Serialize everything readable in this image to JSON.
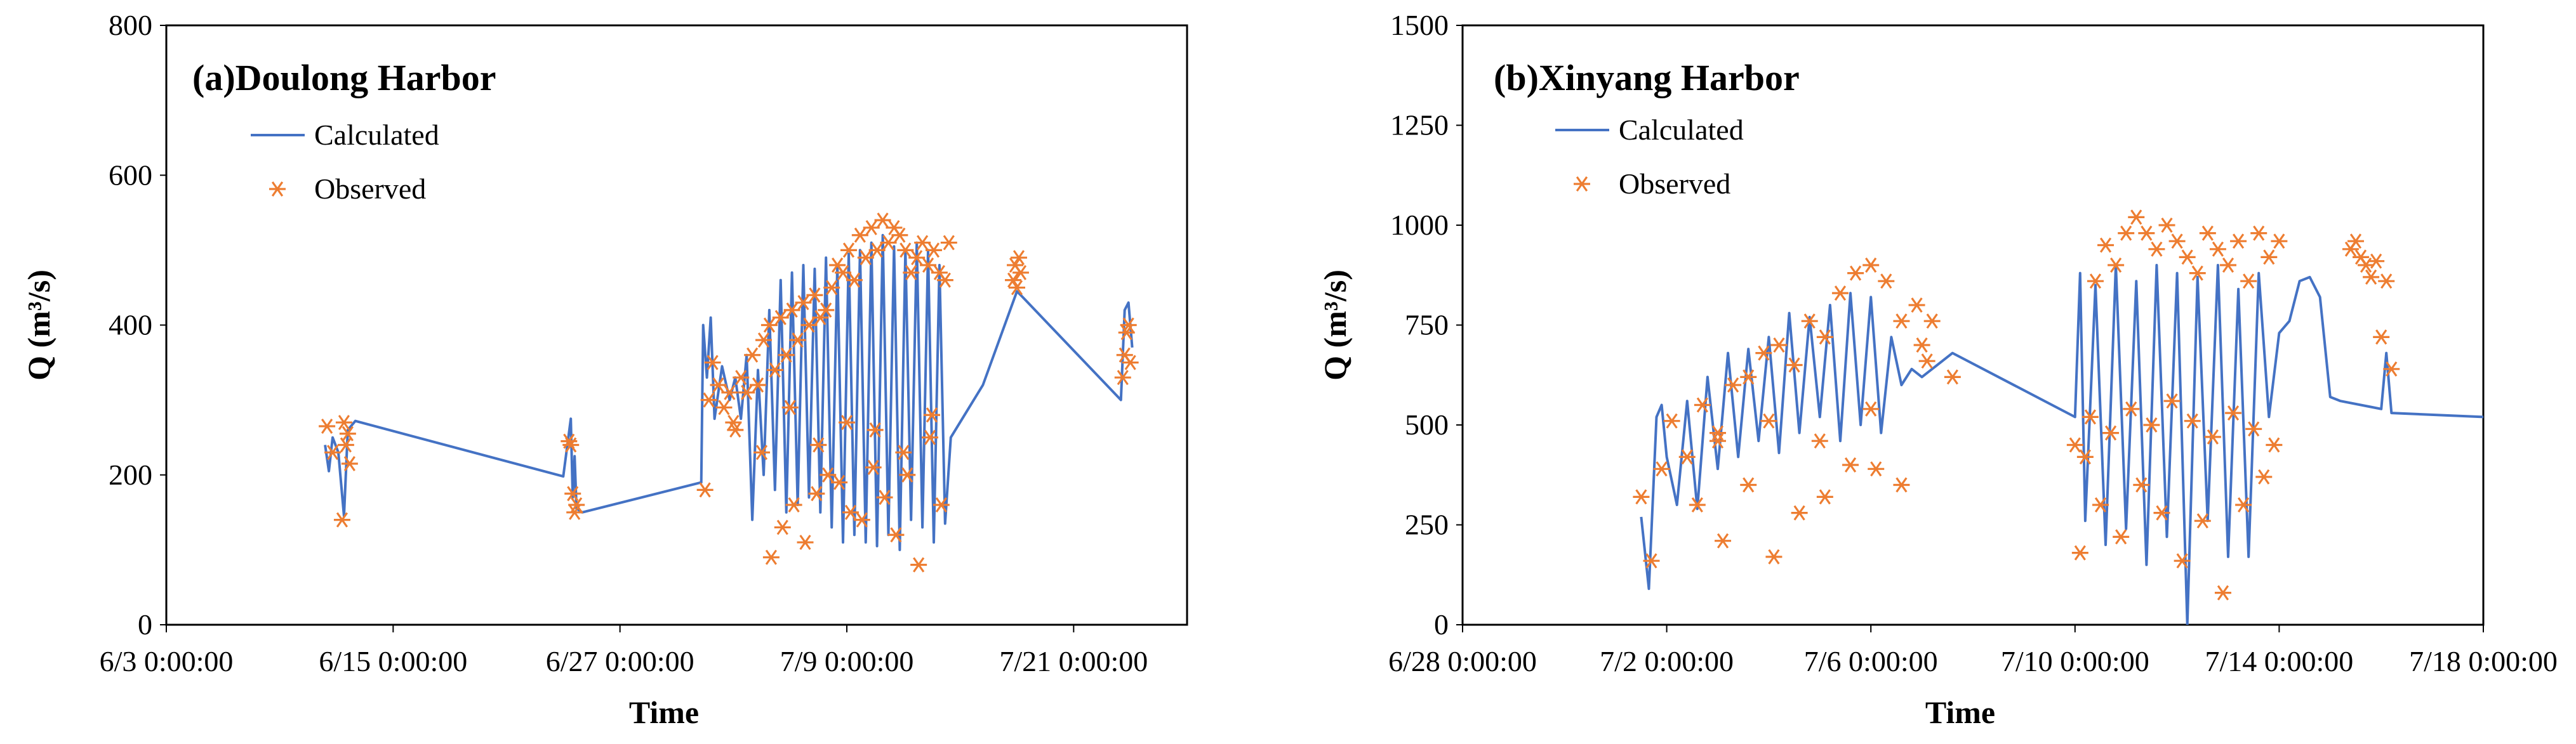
{
  "chart_data": [
    {
      "type": "line",
      "title": "(a)Doulong Harbor",
      "xlabel": "Time",
      "ylabel": "Q (m³/s)",
      "ylim": [
        0,
        800
      ],
      "yticks": [
        0,
        200,
        400,
        600,
        800
      ],
      "xlim": [
        0,
        54
      ],
      "xticks": [
        {
          "value": 0,
          "label": "6/3 0:00:00"
        },
        {
          "value": 12,
          "label": "6/15 0:00:00"
        },
        {
          "value": 24,
          "label": "6/27 0:00:00"
        },
        {
          "value": 36,
          "label": "7/9 0:00:00"
        },
        {
          "value": 48,
          "label": "7/21 0:00:00"
        }
      ],
      "legend": {
        "position": "top-left",
        "calculated_label": "Calculated",
        "observed_label": "Observed"
      },
      "colors": {
        "calculated": "#4472C4",
        "observed": "#ED7D31"
      },
      "series": [
        {
          "name": "Calculated",
          "x": [
            8.4,
            8.6,
            8.8,
            9.1,
            9.4,
            9.6,
            10.0,
            21.0,
            21.4,
            21.5,
            21.6,
            21.7,
            22.0,
            28.3,
            28.4,
            28.6,
            28.8,
            29.0,
            29.4,
            29.8,
            30.1,
            30.4,
            30.7,
            31.0,
            31.3,
            31.6,
            31.9,
            32.2,
            32.5,
            32.8,
            33.1,
            33.4,
            33.7,
            34.0,
            34.3,
            34.6,
            34.9,
            35.2,
            35.5,
            35.8,
            36.1,
            36.4,
            36.7,
            37.0,
            37.3,
            37.6,
            37.9,
            38.2,
            38.5,
            38.8,
            39.1,
            39.4,
            39.7,
            40.0,
            40.3,
            40.6,
            40.9,
            41.2,
            41.5,
            43.2,
            45.0,
            45.2,
            50.5,
            50.7,
            50.9,
            51.1
          ],
          "y": [
            240,
            205,
            250,
            230,
            145,
            260,
            272,
            198,
            275,
            170,
            225,
            155,
            150,
            190,
            400,
            330,
            410,
            275,
            345,
            300,
            330,
            275,
            360,
            140,
            340,
            200,
            420,
            180,
            460,
            150,
            470,
            160,
            480,
            170,
            475,
            150,
            490,
            130,
            480,
            110,
            495,
            120,
            500,
            110,
            510,
            105,
            520,
            120,
            505,
            100,
            500,
            140,
            510,
            130,
            500,
            110,
            480,
            135,
            250,
            320,
            445,
            440,
            300,
            420,
            430,
            370
          ]
        },
        {
          "name": "Observed",
          "x": [
            8.5,
            8.8,
            9.3,
            9.4,
            9.5,
            9.6,
            9.7,
            21.3,
            21.4,
            21.5,
            21.6,
            21.7,
            28.5,
            28.7,
            28.9,
            29.2,
            29.5,
            29.8,
            30.1,
            30.4,
            30.7,
            31.0,
            31.3,
            31.6,
            31.9,
            32.2,
            32.5,
            32.8,
            33.1,
            33.4,
            33.7,
            34.0,
            34.3,
            34.6,
            34.9,
            35.2,
            35.5,
            35.8,
            36.1,
            36.4,
            36.7,
            37.0,
            37.3,
            37.6,
            37.9,
            38.2,
            38.5,
            38.8,
            39.1,
            39.4,
            39.7,
            40.0,
            40.3,
            40.6,
            40.9,
            41.2,
            41.4,
            32.0,
            32.6,
            33.2,
            33.8,
            34.4,
            35.0,
            35.6,
            36.2,
            36.8,
            37.4,
            38.0,
            38.6,
            39.2,
            39.8,
            40.4,
            41.0,
            30.0,
            31.5,
            33.0,
            34.5,
            36.0,
            37.5,
            39.0,
            40.5,
            44.8,
            44.9,
            45.0,
            45.1,
            45.2,
            50.6,
            50.7,
            50.8,
            50.9,
            51.0
          ],
          "y": [
            265,
            230,
            140,
            270,
            240,
            255,
            215,
            245,
            240,
            175,
            150,
            160,
            180,
            300,
            350,
            320,
            290,
            310,
            260,
            330,
            310,
            360,
            320,
            380,
            400,
            340,
            410,
            360,
            420,
            380,
            430,
            400,
            440,
            410,
            420,
            450,
            480,
            470,
            500,
            460,
            520,
            490,
            530,
            500,
            540,
            510,
            530,
            520,
            500,
            470,
            490,
            510,
            480,
            500,
            470,
            460,
            510,
            90,
            130,
            160,
            110,
            175,
            200,
            190,
            150,
            140,
            210,
            170,
            120,
            200,
            80,
            250,
            160,
            270,
            230,
            290,
            240,
            270,
            260,
            230,
            280,
            460,
            480,
            450,
            490,
            470,
            330,
            360,
            390,
            400,
            350
          ]
        }
      ]
    },
    {
      "type": "line",
      "title": "(b)Xinyang Harbor",
      "xlabel": "Time",
      "ylabel": "Q (m³/s)",
      "ylim": [
        0,
        1500
      ],
      "yticks": [
        0,
        250,
        500,
        750,
        1000,
        1250,
        1500
      ],
      "xlim": [
        0,
        20
      ],
      "xticks": [
        {
          "value": 0,
          "label": "6/28 0:00:00"
        },
        {
          "value": 4,
          "label": "7/2 0:00:00"
        },
        {
          "value": 8,
          "label": "7/6 0:00:00"
        },
        {
          "value": 12,
          "label": "7/10 0:00:00"
        },
        {
          "value": 16,
          "label": "7/14 0:00:00"
        },
        {
          "value": 20,
          "label": "7/18 0:00:00"
        }
      ],
      "legend": {
        "position": "top-left",
        "calculated_label": "Calculated",
        "observed_label": "Observed"
      },
      "colors": {
        "calculated": "#4472C4",
        "observed": "#ED7D31"
      },
      "series": [
        {
          "name": "Calculated",
          "x": [
            3.5,
            3.65,
            3.8,
            3.9,
            4.0,
            4.2,
            4.4,
            4.6,
            4.8,
            5.0,
            5.2,
            5.4,
            5.6,
            5.8,
            6.0,
            6.2,
            6.4,
            6.6,
            6.8,
            7.0,
            7.2,
            7.4,
            7.6,
            7.8,
            8.0,
            8.2,
            8.4,
            8.6,
            8.8,
            9.0,
            9.6,
            12.0,
            12.1,
            12.2,
            12.4,
            12.6,
            12.8,
            13.0,
            13.2,
            13.4,
            13.6,
            13.8,
            14.0,
            14.2,
            14.4,
            14.6,
            14.8,
            15.0,
            15.2,
            15.4,
            15.6,
            15.8,
            16.0,
            16.2,
            16.4,
            16.6,
            16.8,
            17.0,
            17.2,
            17.8,
            18.0,
            18.1,
            18.2,
            20.0
          ],
          "y": [
            270,
            90,
            520,
            550,
            420,
            300,
            560,
            290,
            620,
            390,
            680,
            420,
            690,
            460,
            720,
            430,
            780,
            480,
            770,
            520,
            800,
            460,
            830,
            500,
            820,
            480,
            720,
            600,
            640,
            620,
            680,
            520,
            880,
            260,
            850,
            200,
            900,
            240,
            860,
            150,
            900,
            220,
            880,
            0,
            870,
            260,
            900,
            170,
            840,
            170,
            880,
            520,
            730,
            760,
            860,
            870,
            820,
            570,
            560,
            545,
            540,
            680,
            530,
            520
          ]
        },
        {
          "name": "Observed",
          "x": [
            3.5,
            3.7,
            3.9,
            4.1,
            4.4,
            4.7,
            5.0,
            5.3,
            5.6,
            5.9,
            6.2,
            6.5,
            6.8,
            7.1,
            7.4,
            7.7,
            8.0,
            8.3,
            8.6,
            8.9,
            9.2,
            4.6,
            5.1,
            5.6,
            6.1,
            6.6,
            7.1,
            7.6,
            8.1,
            8.6,
            9.1,
            9.6,
            5.0,
            6.0,
            7.0,
            8.0,
            9.0,
            12.0,
            12.2,
            12.4,
            12.6,
            12.8,
            13.0,
            13.2,
            13.4,
            13.6,
            13.8,
            14.0,
            14.2,
            14.4,
            14.6,
            14.8,
            15.0,
            15.2,
            15.4,
            15.6,
            15.8,
            16.0,
            12.1,
            12.5,
            12.9,
            13.3,
            13.7,
            14.1,
            14.5,
            14.9,
            15.3,
            15.7,
            12.3,
            12.7,
            13.1,
            13.5,
            13.9,
            14.3,
            14.7,
            15.1,
            15.5,
            15.9,
            17.4,
            17.5,
            17.6,
            17.7,
            17.8,
            17.9,
            18.0,
            18.1,
            18.2
          ],
          "y": [
            320,
            160,
            390,
            510,
            420,
            550,
            480,
            600,
            620,
            680,
            700,
            650,
            760,
            720,
            830,
            880,
            900,
            860,
            760,
            800,
            760,
            300,
            210,
            350,
            170,
            280,
            320,
            400,
            390,
            350,
            660,
            620,
            460,
            510,
            460,
            540,
            700,
            450,
            420,
            860,
            950,
            900,
            980,
            1020,
            980,
            940,
            1000,
            960,
            920,
            880,
            980,
            940,
            900,
            960,
            860,
            980,
            920,
            960,
            180,
            300,
            220,
            350,
            280,
            160,
            260,
            80,
            300,
            370,
            520,
            480,
            540,
            500,
            560,
            510,
            470,
            530,
            490,
            450,
            940,
            960,
            920,
            900,
            870,
            910,
            720,
            860,
            640
          ]
        }
      ]
    }
  ]
}
